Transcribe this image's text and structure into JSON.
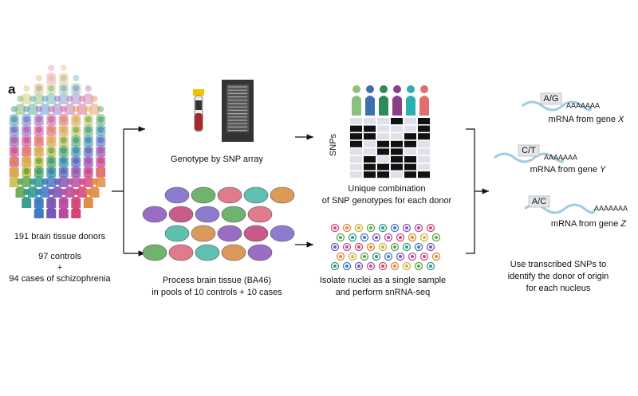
{
  "panel_label": "a",
  "donors": {
    "title": "191 brain tissue donors",
    "lines": [
      "97 controls",
      "+",
      "94 cases of schizophrenia"
    ]
  },
  "genotype": {
    "label": "Genotype by SNP array"
  },
  "tissue": {
    "lines": [
      "Process brain tissue (BA46)",
      "in pools of 10 controls + 10 cases"
    ]
  },
  "snp_matrix": {
    "axis_label": "SNPs",
    "lines": [
      "Unique combination",
      "of SNP genotypes for each donor"
    ]
  },
  "nuclei": {
    "lines": [
      "Isolate nuclei as a single sample",
      "and perform snRNA-seq"
    ]
  },
  "transcripts": [
    {
      "snp": "A/G",
      "polya": "AAAAAAA",
      "label": "mRNA from gene",
      "gene": "X"
    },
    {
      "snp": "C/T",
      "polya": "AAAAAAA",
      "label": "mRNA from gene",
      "gene": "Y"
    },
    {
      "snp": "A/C",
      "polya": "AAAAAAA",
      "label": "mRNA from gene",
      "gene": "Z"
    }
  ],
  "conclusion": {
    "lines": [
      "Use transcribed SNPs to",
      "identify the donor of origin",
      "for each nucleus"
    ]
  }
}
